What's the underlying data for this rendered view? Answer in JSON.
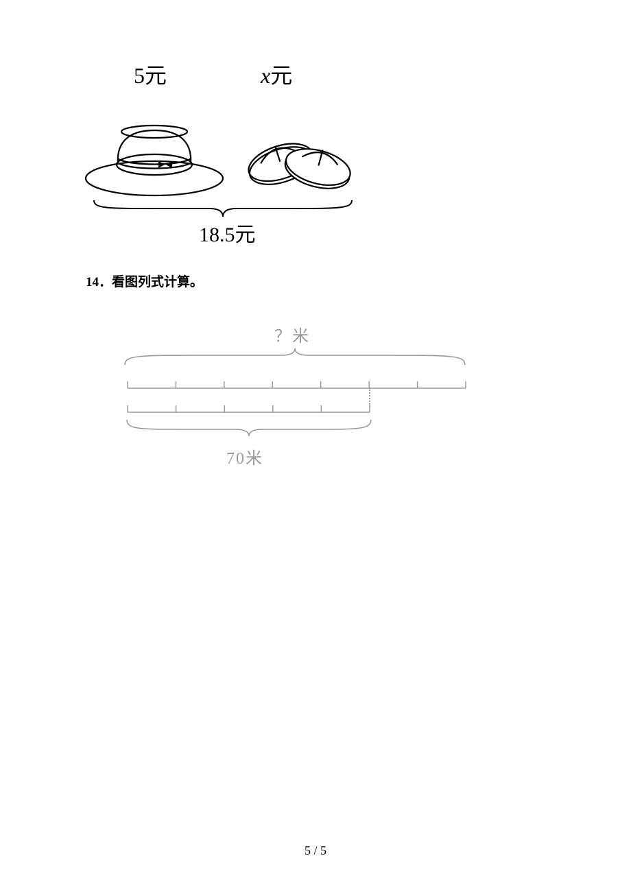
{
  "figure1": {
    "hat_price": "5",
    "hat_unit": "元",
    "sandal_price": "x",
    "sandal_unit": "元",
    "total_price": "18.5",
    "total_unit": "元",
    "stroke_color": "#000000",
    "stroke_width": 2,
    "font_size_labels": 32,
    "font_size_total": 30
  },
  "question14": {
    "number": "14．",
    "text": "看图列式计算。"
  },
  "figure2": {
    "top_label": "？米",
    "bottom_label": "70米",
    "top_segments": 7,
    "bottom_segments": 5,
    "stroke_color": "#9a9a9a",
    "stroke_width": 1.5,
    "tick_height": 10,
    "font_size": 24
  },
  "page_number": "5 / 5"
}
